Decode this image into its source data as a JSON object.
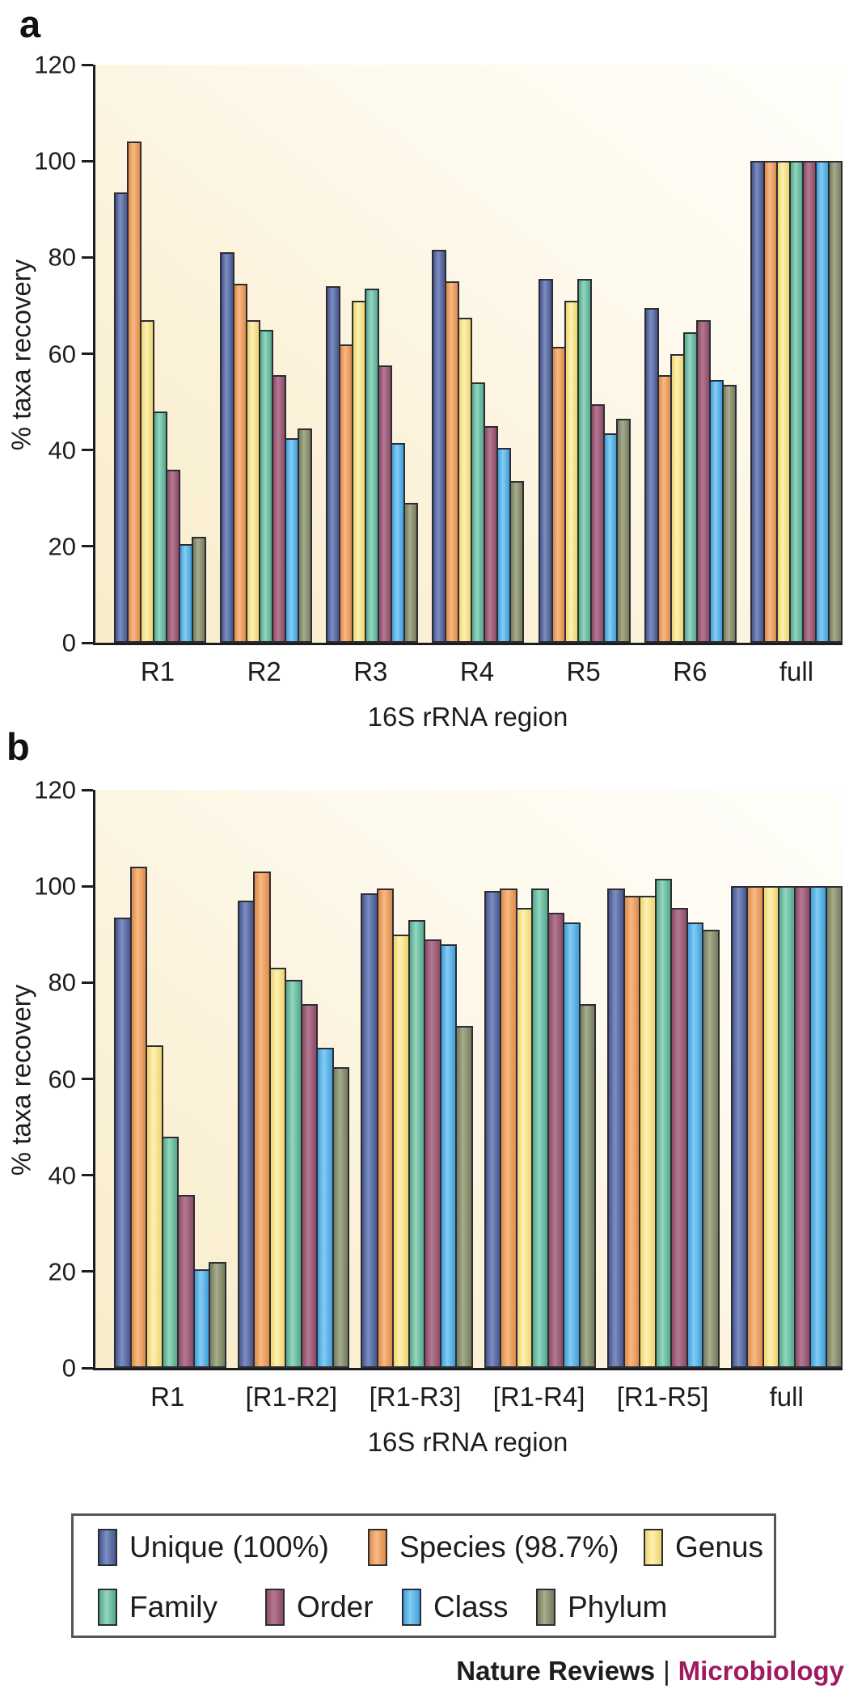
{
  "panels": [
    {
      "label": "a"
    },
    {
      "label": "b"
    }
  ],
  "palette": {
    "unique": {
      "dark": "#46568b",
      "light": "#7d8ec2"
    },
    "species": {
      "dark": "#dd8a4b",
      "light": "#f8ba83"
    },
    "genus": {
      "dark": "#eed36e",
      "light": "#fdf2b2"
    },
    "family": {
      "dark": "#54a78c",
      "light": "#93d6bf"
    },
    "order": {
      "dark": "#8c4a66",
      "light": "#b47991"
    },
    "class": {
      "dark": "#3f9ed8",
      "light": "#83cdf3"
    },
    "phylum": {
      "dark": "#747b5a",
      "light": "#a6ac8e"
    }
  },
  "legend": {
    "items": [
      {
        "key": "unique",
        "label": "Unique (100%)"
      },
      {
        "key": "species",
        "label": "Species (98.7%)"
      },
      {
        "key": "genus",
        "label": "Genus"
      },
      {
        "key": "family",
        "label": "Family"
      },
      {
        "key": "order",
        "label": "Order"
      },
      {
        "key": "class",
        "label": "Class"
      },
      {
        "key": "phylum",
        "label": "Phylum"
      }
    ]
  },
  "footer": {
    "journal": "Nature Reviews",
    "separator": "|",
    "title": "Microbiology",
    "title_color": "#a01a5f"
  },
  "chart_data": [
    {
      "type": "bar",
      "panel": "a",
      "title": "",
      "xlabel": "16S rRNA region",
      "ylabel": "% taxa recovery",
      "ylim": [
        0,
        120
      ],
      "yticks": [
        0,
        20,
        40,
        60,
        80,
        100,
        120
      ],
      "grid": false,
      "legend_position": "below-figure",
      "categories": [
        "R1",
        "R2",
        "R3",
        "R4",
        "R5",
        "R6",
        "full"
      ],
      "series": [
        {
          "key": "unique",
          "name": "Unique (100%)",
          "values": [
            93.5,
            81,
            74,
            81.5,
            75.5,
            69.5,
            100
          ]
        },
        {
          "key": "species",
          "name": "Species (98.7%)",
          "values": [
            104,
            74.5,
            62,
            75,
            61.5,
            55.5,
            100
          ]
        },
        {
          "key": "genus",
          "name": "Genus",
          "values": [
            67,
            67,
            71,
            67.5,
            71,
            60,
            100
          ]
        },
        {
          "key": "family",
          "name": "Family",
          "values": [
            48,
            65,
            73.5,
            54,
            75.5,
            64.5,
            100
          ]
        },
        {
          "key": "order",
          "name": "Order",
          "values": [
            36,
            55.5,
            57.5,
            45,
            49.5,
            67,
            100
          ]
        },
        {
          "key": "class",
          "name": "Class",
          "values": [
            20.5,
            42.5,
            41.5,
            40.5,
            43.5,
            54.5,
            100
          ]
        },
        {
          "key": "phylum",
          "name": "Phylum",
          "values": [
            22,
            44.5,
            29,
            33.5,
            46.5,
            53.5,
            100
          ]
        }
      ]
    },
    {
      "type": "bar",
      "panel": "b",
      "title": "",
      "xlabel": "16S rRNA region",
      "ylabel": "% taxa recovery",
      "ylim": [
        0,
        120
      ],
      "yticks": [
        0,
        20,
        40,
        60,
        80,
        100,
        120
      ],
      "grid": false,
      "legend_position": "below-figure",
      "categories": [
        "R1",
        "[R1-R2]",
        "[R1-R3]",
        "[R1-R4]",
        "[R1-R5]",
        "full"
      ],
      "series": [
        {
          "key": "unique",
          "name": "Unique (100%)",
          "values": [
            93.5,
            97,
            98.5,
            99,
            99.5,
            100
          ]
        },
        {
          "key": "species",
          "name": "Species (98.7%)",
          "values": [
            104,
            103,
            99.5,
            99.5,
            98,
            100
          ]
        },
        {
          "key": "genus",
          "name": "Genus",
          "values": [
            67,
            83,
            90,
            95.5,
            98,
            100
          ]
        },
        {
          "key": "family",
          "name": "Family",
          "values": [
            48,
            80.5,
            93,
            99.5,
            101.5,
            100
          ]
        },
        {
          "key": "order",
          "name": "Order",
          "values": [
            36,
            75.5,
            89,
            94.5,
            95.5,
            100
          ]
        },
        {
          "key": "class",
          "name": "Class",
          "values": [
            20.5,
            66.5,
            88,
            92.5,
            92.5,
            100
          ]
        },
        {
          "key": "phylum",
          "name": "Phylum",
          "values": [
            22,
            62.5,
            71,
            75.5,
            91,
            100
          ]
        }
      ]
    }
  ]
}
